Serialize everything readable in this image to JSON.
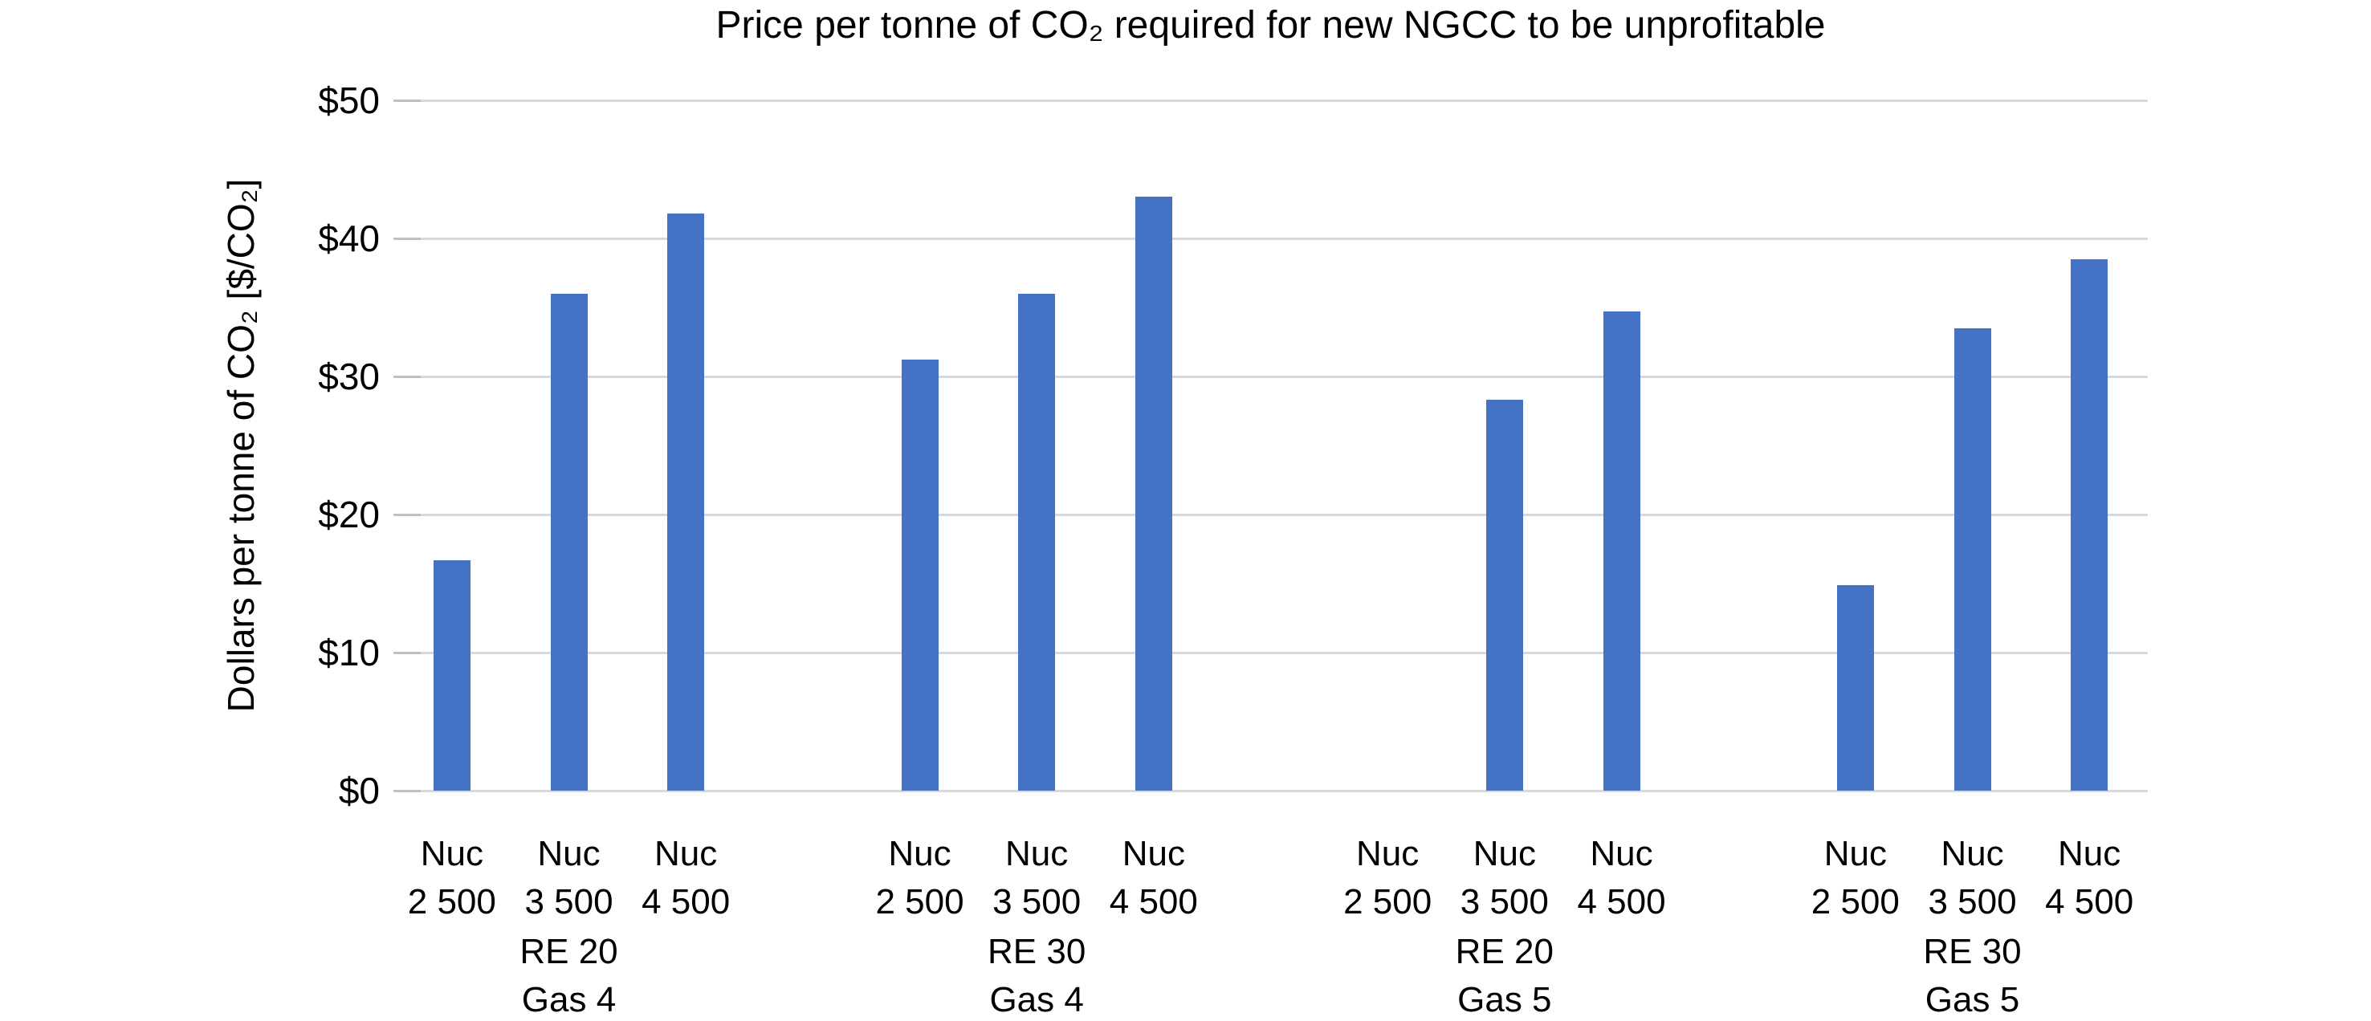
{
  "chart_data": {
    "type": "bar",
    "title": "Price per tonne of CO₂ required for new NGCC to be unprofitable",
    "ylabel": "Dollars per tonne of CO₂ [$/CO₂]",
    "xlabel": "",
    "ylim": [
      0,
      50
    ],
    "grid": "horizontal",
    "legend": "none",
    "bar_color": "#4472C4",
    "gridline_color": "#D9D9D9",
    "tick_color": "#BFBFBF",
    "text_color": "#000000",
    "yticks": [
      {
        "value": 0,
        "label": "$0"
      },
      {
        "value": 10,
        "label": "$10"
      },
      {
        "value": 20,
        "label": "$20"
      },
      {
        "value": 30,
        "label": "$30"
      },
      {
        "value": 40,
        "label": "$40"
      },
      {
        "value": 50,
        "label": "$50"
      }
    ],
    "groups": [
      {
        "group_label_line1": "RE 20",
        "group_label_line2": "Gas 4",
        "bars": [
          {
            "tick_line1": "Nuc",
            "tick_line2": "2 500",
            "value": 16.7
          },
          {
            "tick_line1": "Nuc",
            "tick_line2": "3 500",
            "value": 36.0
          },
          {
            "tick_line1": "Nuc",
            "tick_line2": "4 500",
            "value": 41.8
          }
        ]
      },
      {
        "group_label_line1": "RE 30",
        "group_label_line2": "Gas 4",
        "bars": [
          {
            "tick_line1": "Nuc",
            "tick_line2": "2 500",
            "value": 31.2
          },
          {
            "tick_line1": "Nuc",
            "tick_line2": "3 500",
            "value": 36.0
          },
          {
            "tick_line1": "Nuc",
            "tick_line2": "4 500",
            "value": 43.0
          }
        ]
      },
      {
        "group_label_line1": "RE 20",
        "group_label_line2": "Gas 5",
        "bars": [
          {
            "tick_line1": "Nuc",
            "tick_line2": "2 500",
            "value": 0
          },
          {
            "tick_line1": "Nuc",
            "tick_line2": "3 500",
            "value": 28.3
          },
          {
            "tick_line1": "Nuc",
            "tick_line2": "4 500",
            "value": 34.7
          }
        ]
      },
      {
        "group_label_line1": "RE 30",
        "group_label_line2": "Gas 5",
        "bars": [
          {
            "tick_line1": "Nuc",
            "tick_line2": "2 500",
            "value": 14.9
          },
          {
            "tick_line1": "Nuc",
            "tick_line2": "3 500",
            "value": 33.5
          },
          {
            "tick_line1": "Nuc",
            "tick_line2": "4 500",
            "value": 38.5
          }
        ]
      }
    ]
  }
}
